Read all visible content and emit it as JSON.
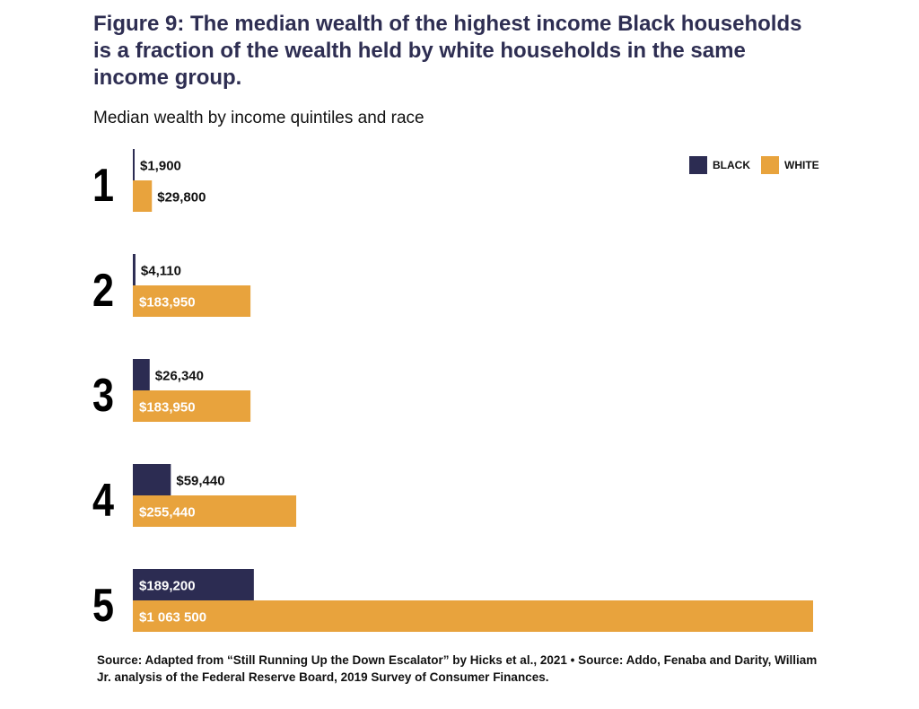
{
  "title": "Figure 9: The median wealth of the highest income Black households is a fraction of the wealth held by white households in the same income group.",
  "subtitle": "Median wealth by income quintiles and race",
  "legend": {
    "black_label": "BLACK",
    "white_label": "WHITE"
  },
  "colors": {
    "black": "#2c2c52",
    "white": "#e8a33d",
    "label_dark": "#111111",
    "label_light": "#ffffff"
  },
  "source": "Source: Adapted from “Still Running Up the Down Escalator” by Hicks et al., 2021 • Source: Addo, Fenaba and Darity, William Jr. analysis of the Federal Reserve Board, 2019 Survey of Consumer Finances.",
  "chart_data": {
    "type": "bar",
    "orientation": "horizontal",
    "title": "Median wealth by income quintiles and race",
    "categories": [
      "1",
      "2",
      "3",
      "4",
      "5"
    ],
    "series": [
      {
        "name": "BLACK",
        "values": [
          1900,
          4110,
          26340,
          59440,
          189200
        ],
        "labels": [
          "$1,900",
          "$4,110",
          "$26,340",
          "$59,440",
          "$189,200"
        ]
      },
      {
        "name": "WHITE",
        "values": [
          29800,
          183950,
          183950,
          255440,
          1063500
        ],
        "labels": [
          "$29,800",
          "$183,950",
          "$183,950",
          "$255,440",
          "$1 063 500"
        ]
      }
    ],
    "xlim": [
      0,
      1063500
    ],
    "grid": false,
    "legend_position": "top-right"
  }
}
